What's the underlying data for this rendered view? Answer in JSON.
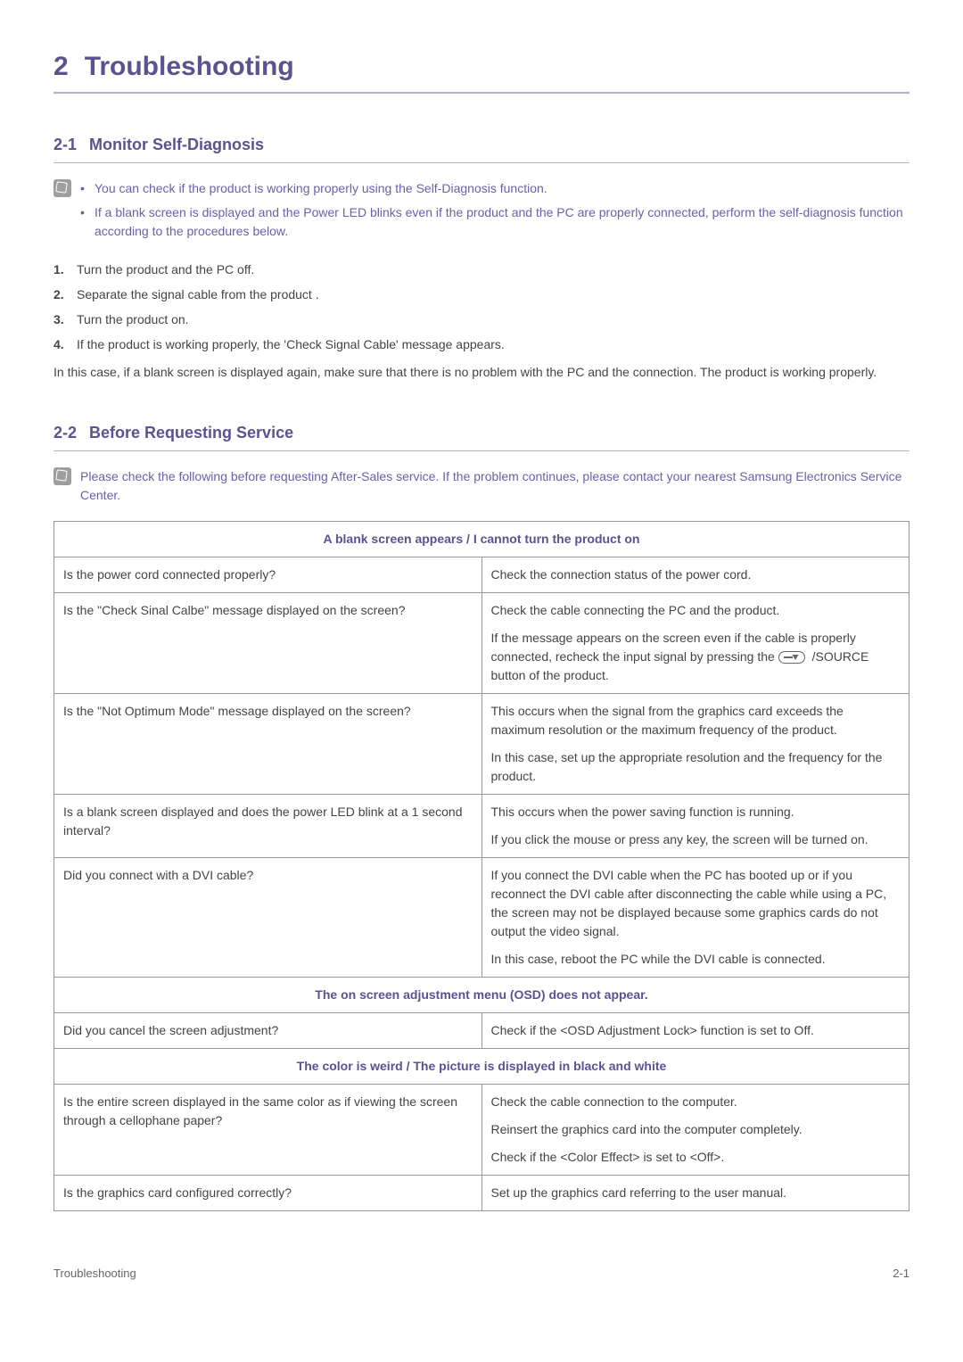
{
  "colors": {
    "heading": "#5b5291",
    "accent": "#6b5faa",
    "body": "#444444",
    "table_header": "#5b5291",
    "rule": "#b7b0d0"
  },
  "chapter": {
    "num": "2",
    "title": "Troubleshooting"
  },
  "s1": {
    "num": "2-1",
    "title": "Monitor Self-Diagnosis",
    "notes": [
      "You can check if the product is working properly using the Self-Diagnosis function.",
      "If a blank screen is displayed and the Power LED blinks even if the product and the PC are properly connected, perform the self-diagnosis function according to the procedures below."
    ],
    "steps": [
      "Turn the product and the PC off.",
      "Separate the signal cable from the product .",
      "Turn the product on.",
      "If the product is working properly, the 'Check Signal Cable' message appears."
    ],
    "after_steps": "In this case, if a blank screen is displayed again, make sure that there is no problem with the PC and the connection. The product is working properly."
  },
  "s2": {
    "num": "2-2",
    "title": "Before Requesting Service",
    "note": "Please check the following before requesting After-Sales service. If the problem continues, please contact your nearest Samsung Electronics Service Center.",
    "sec_a_title": "A blank screen appears / I cannot turn the product on",
    "rows_a": [
      {
        "q": "Is the power cord connected properly?",
        "a": [
          "Check the connection status of the power cord."
        ]
      },
      {
        "q": "Is the \"Check Sinal Calbe\" message displayed on the screen?",
        "a": [
          "Check the cable connecting the PC and the product.",
          "If the message appears on the screen even if the cable is properly connected, recheck the input signal by pressing the __SOURCE__ /SOURCE button of the product."
        ]
      },
      {
        "q": "Is the \"Not Optimum Mode\" message displayed on the screen?",
        "a": [
          "This occurs when the signal from the graphics card exceeds the maximum resolution or the maximum frequency of the product.",
          "In this case, set up the appropriate resolution and the frequency for the product."
        ]
      },
      {
        "q": "Is a blank screen displayed and does the power LED blink at a 1 second interval?",
        "a": [
          "This occurs when the power saving function is running.",
          "If you click the mouse or press any key, the screen will be turned on."
        ]
      },
      {
        "q": "Did you connect with a DVI cable?",
        "a": [
          "If you connect the DVI cable when the PC has booted up or if you reconnect the DVI cable after disconnecting the cable while using a PC, the screen may not be displayed because some graphics cards do not output the video signal.",
          "In this case, reboot the PC while the DVI cable is connected."
        ]
      }
    ],
    "sec_b_title": "The on screen adjustment menu (OSD) does not appear.",
    "rows_b": [
      {
        "q": "Did you cancel the screen adjustment?",
        "a": [
          "Check if the <OSD Adjustment Lock> function is set to Off."
        ]
      }
    ],
    "sec_c_title": "The color is weird / The picture is displayed in black and white",
    "rows_c": [
      {
        "q": "Is the entire screen displayed in the same color as if viewing the screen through a cellophane paper?",
        "a": [
          "Check the cable connection to the computer.",
          "Reinsert the graphics card into the computer completely.",
          "Check if the <Color Effect> is set to <Off>."
        ]
      },
      {
        "q": "Is the graphics card configured correctly?",
        "a": [
          "Set up the graphics card referring to the user manual."
        ]
      }
    ]
  },
  "footer": {
    "left": "Troubleshooting",
    "right": "2-1"
  }
}
